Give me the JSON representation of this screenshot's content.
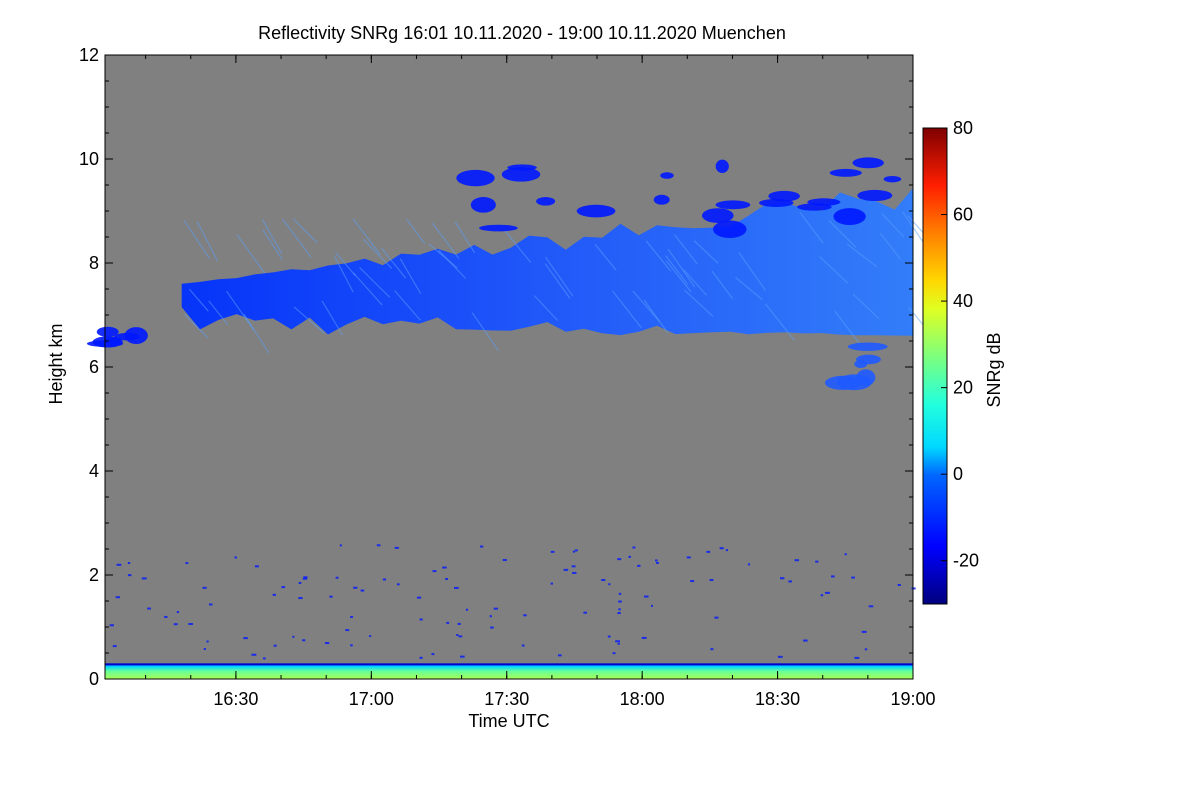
{
  "chart_data": {
    "type": "heatmap",
    "title": "Reflectivity SNRg   16:01 10.11.2020 - 19:00 10.11.2020 Muenchen",
    "xlabel": "Time UTC",
    "ylabel": "Height km",
    "xlim": [
      "16:01",
      "19:00"
    ],
    "ylim": [
      0,
      12
    ],
    "x_ticks": [
      "16:30",
      "17:00",
      "17:30",
      "18:00",
      "18:30",
      "19:00"
    ],
    "y_ticks": [
      "0",
      "2",
      "4",
      "6",
      "8",
      "10",
      "12"
    ],
    "background_color": "#808080",
    "colorbar": {
      "label": "SNRg dB",
      "range": [
        -30,
        80
      ],
      "ticks": [
        "-20",
        "0",
        "20",
        "40",
        "60",
        "80"
      ]
    },
    "features": [
      {
        "kind": "cirrus band",
        "time_start": "16:18",
        "time_end": "19:00",
        "height_bottom_km": 6.0,
        "height_top_km": 9.6,
        "snr_db_typical": -12
      },
      {
        "kind": "upper cirrus fragments",
        "time_start": "17:15",
        "time_end": "19:00",
        "height_bottom_km": 8.6,
        "height_top_km": 10.0,
        "snr_db_typical": -20
      },
      {
        "kind": "lower fragment",
        "time_start": "16:01",
        "time_end": "16:10",
        "height_bottom_km": 6.4,
        "height_top_km": 6.7,
        "snr_db_typical": -18
      },
      {
        "kind": "lower fragment",
        "time_start": "18:42",
        "time_end": "18:52",
        "height_bottom_km": 5.6,
        "height_top_km": 6.4,
        "snr_db_typical": -12
      },
      {
        "kind": "near-surface echo",
        "time_start": "16:01",
        "time_end": "19:00",
        "height_bottom_km": 0.0,
        "height_top_km": 0.3,
        "snr_db_typical": 25
      }
    ]
  }
}
